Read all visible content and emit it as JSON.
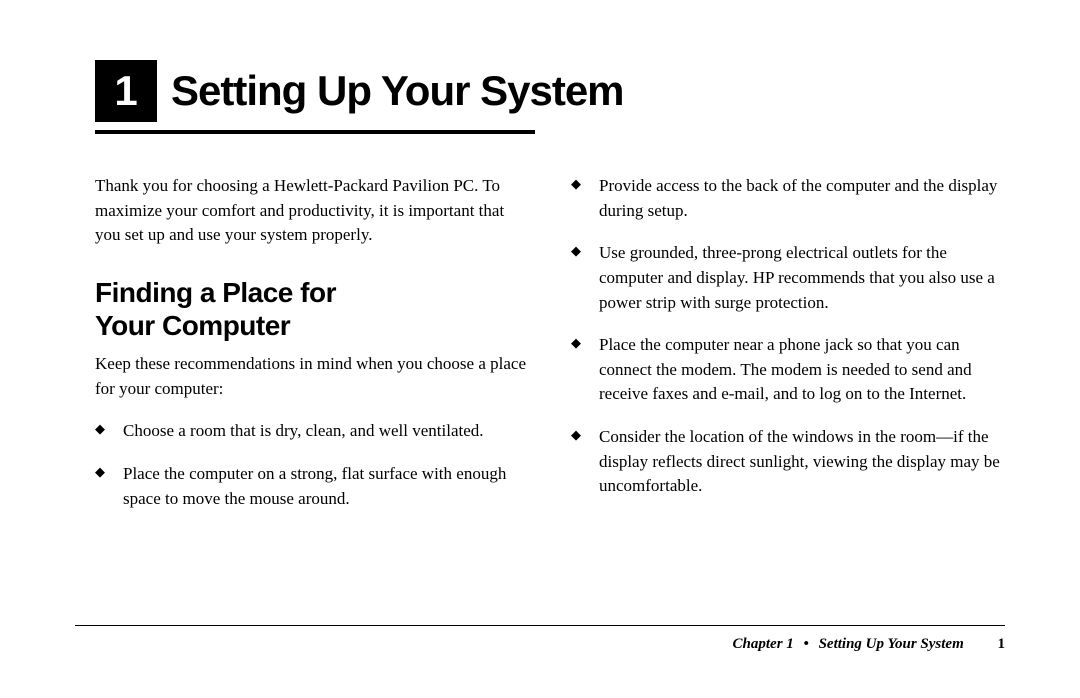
{
  "header": {
    "chapter_number": "1",
    "chapter_title": "Setting Up Your System"
  },
  "colors": {
    "text": "#000000",
    "background": "#ffffff",
    "box_bg": "#000000",
    "box_fg": "#ffffff",
    "rule": "#000000"
  },
  "typography": {
    "title_fontsize": 42,
    "heading_fontsize": 28,
    "body_fontsize": 17,
    "footer_fontsize": 15,
    "heading_family": "Arial",
    "body_family": "Georgia"
  },
  "intro": "Thank you for choosing a Hewlett-Packard Pavilion PC. To maximize your comfort and productivity, it is important that you set up and use your system properly.",
  "section": {
    "heading_line1": "Finding a Place for",
    "heading_line2": "Your Computer",
    "lead": "Keep these recommendations in mind when you choose a place for your computer:"
  },
  "left_bullets": [
    "Choose a room that is dry, clean, and well ventilated.",
    "Place the computer on a strong, flat surface with enough space to move the mouse around."
  ],
  "right_bullets": [
    "Provide access to the back of the computer and the display during setup.",
    "Use grounded, three-prong electrical outlets for the computer and display. HP recommends that you also use a power strip with surge protection.",
    "Place the computer near a phone jack so that you can connect the modem. The modem is needed to send and receive faxes and e-mail, and to log on to the Internet.",
    "Consider the location of the windows in the room—if the display reflects direct sunlight, viewing the display may be uncomfortable."
  ],
  "footer": {
    "chapter_label": "Chapter 1",
    "separator": "•",
    "section_label": "Setting Up Your System",
    "page_number": "1"
  }
}
